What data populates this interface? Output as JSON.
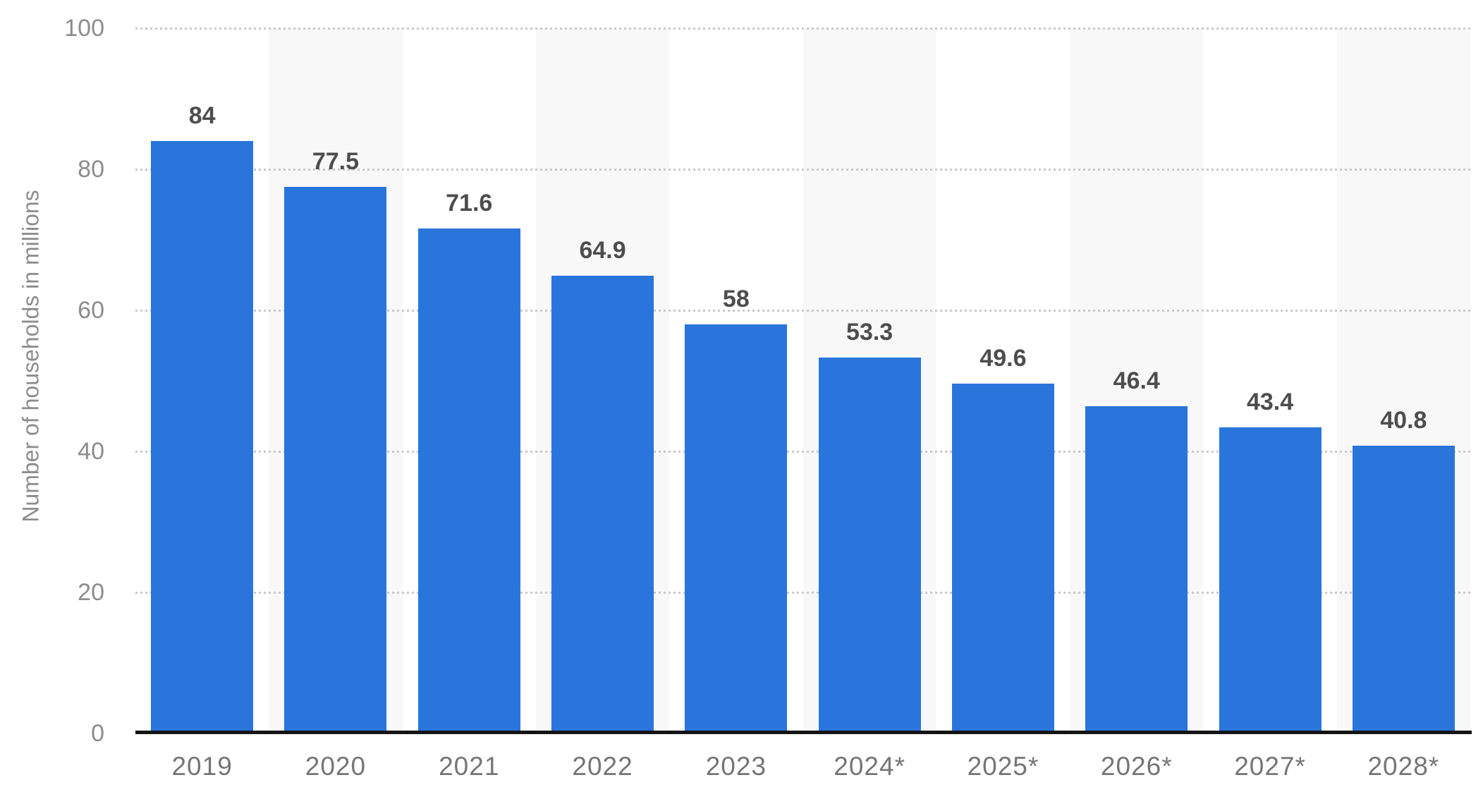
{
  "chart_data": {
    "type": "bar",
    "title": "",
    "xlabel": "",
    "ylabel": "Number of households in millions",
    "categories": [
      "2019",
      "2020",
      "2021",
      "2022",
      "2023",
      "2024*",
      "2025*",
      "2026*",
      "2027*",
      "2028*"
    ],
    "values": [
      84,
      77.5,
      71.6,
      64.9,
      58,
      53.3,
      49.6,
      46.4,
      43.4,
      40.8
    ],
    "value_labels": [
      "84",
      "77.5",
      "71.6",
      "64.9",
      "58",
      "53.3",
      "49.6",
      "46.4",
      "43.4",
      "40.8"
    ],
    "ylim": [
      0,
      100
    ],
    "yticks": [
      0,
      20,
      40,
      60,
      80,
      100
    ],
    "grid": "horizontal-dotted",
    "legend": "none",
    "alternating_column_bands": true,
    "colors": {
      "bar": "#2a75db",
      "stripe": "#f8f8f8",
      "gridline": "#c9c9c9",
      "axis_line": "#141414",
      "value_label": "#4d4d4d",
      "y_tick_label": "#8c8c8c",
      "x_tick_label": "#757575",
      "y_axis_title": "#8c8c8c",
      "background": "#ffffff"
    }
  }
}
